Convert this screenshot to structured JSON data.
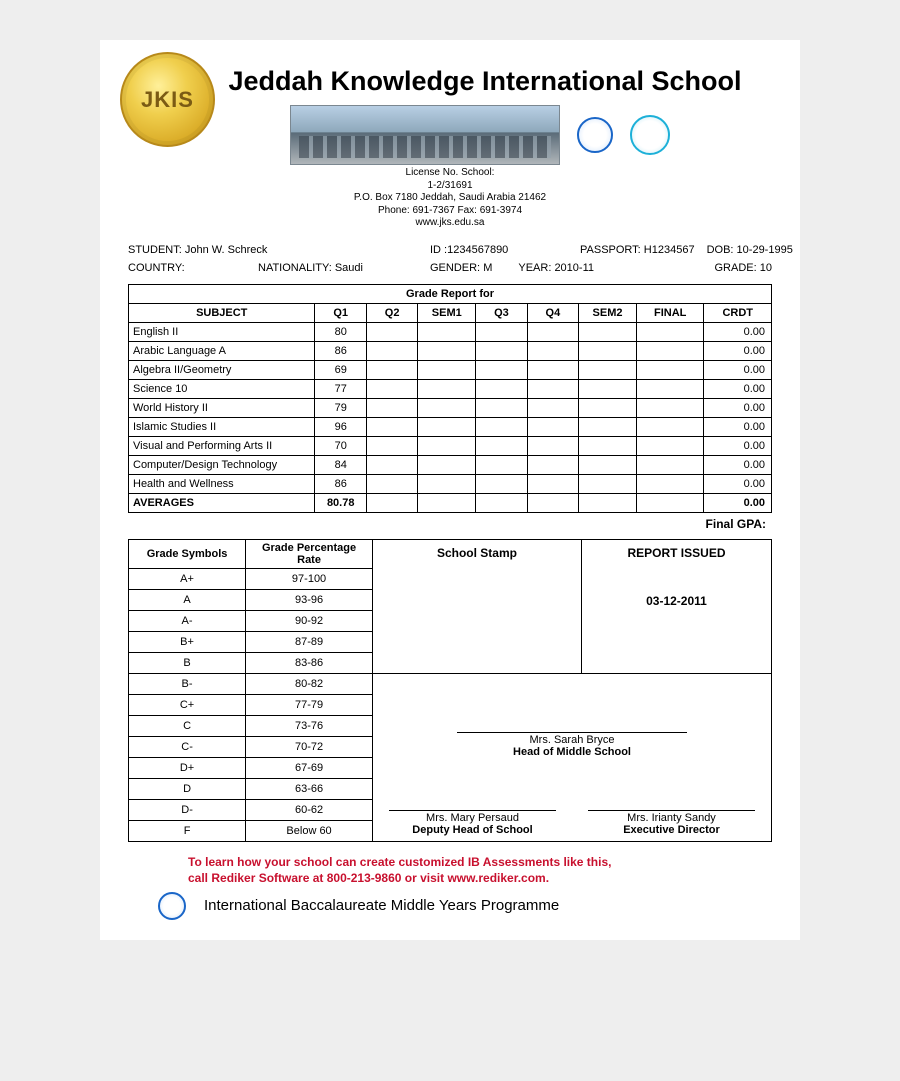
{
  "school": {
    "name": "Jeddah Knowledge International School",
    "logo_text": "JKIS",
    "license_label": "License No. School:",
    "license_no": "1-2/31691",
    "address": "P.O. Box 7180 Jeddah, Saudi Arabia 21462",
    "phone_fax": "Phone: 691-7367  Fax: 691-3974",
    "website": "www.jks.edu.sa"
  },
  "student": {
    "name_label": "STUDENT:",
    "name": "John W. Schreck",
    "id_label": "ID :",
    "id": "1234567890",
    "passport_label": "PASSPORT:",
    "passport": "H1234567",
    "dob_label": "DOB:",
    "dob": "10-29-1995",
    "country_label": "COUNTRY:",
    "country": "",
    "nationality_label": "NATIONALITY:",
    "nationality": "Saudi",
    "gender_label": "GENDER:",
    "gender": "M",
    "year_label": "YEAR:",
    "year": "2010-11",
    "grade_label": "GRADE:",
    "grade": "10"
  },
  "report": {
    "title": "Grade Report for",
    "columns": [
      "SUBJECT",
      "Q1",
      "Q2",
      "SEM1",
      "Q3",
      "Q4",
      "SEM2",
      "FINAL",
      "CRDT"
    ],
    "col_widths_pct": [
      29,
      8,
      8,
      9,
      8,
      8,
      9,
      10.5,
      10.5
    ],
    "rows": [
      {
        "subject": "English II",
        "q1": "80",
        "q2": "",
        "sem1": "",
        "q3": "",
        "q4": "",
        "sem2": "",
        "final": "",
        "crdt": "0.00"
      },
      {
        "subject": "Arabic Language A",
        "q1": "86",
        "q2": "",
        "sem1": "",
        "q3": "",
        "q4": "",
        "sem2": "",
        "final": "",
        "crdt": "0.00"
      },
      {
        "subject": "Algebra II/Geometry",
        "q1": "69",
        "q2": "",
        "sem1": "",
        "q3": "",
        "q4": "",
        "sem2": "",
        "final": "",
        "crdt": "0.00"
      },
      {
        "subject": "Science 10",
        "q1": "77",
        "q2": "",
        "sem1": "",
        "q3": "",
        "q4": "",
        "sem2": "",
        "final": "",
        "crdt": "0.00"
      },
      {
        "subject": "World History II",
        "q1": "79",
        "q2": "",
        "sem1": "",
        "q3": "",
        "q4": "",
        "sem2": "",
        "final": "",
        "crdt": "0.00"
      },
      {
        "subject": "Islamic Studies II",
        "q1": "96",
        "q2": "",
        "sem1": "",
        "q3": "",
        "q4": "",
        "sem2": "",
        "final": "",
        "crdt": "0.00"
      },
      {
        "subject": "Visual and Performing Arts II",
        "q1": "70",
        "q2": "",
        "sem1": "",
        "q3": "",
        "q4": "",
        "sem2": "",
        "final": "",
        "crdt": "0.00"
      },
      {
        "subject": "Computer/Design Technology",
        "q1": "84",
        "q2": "",
        "sem1": "",
        "q3": "",
        "q4": "",
        "sem2": "",
        "final": "",
        "crdt": "0.00"
      },
      {
        "subject": "Health and Wellness",
        "q1": "86",
        "q2": "",
        "sem1": "",
        "q3": "",
        "q4": "",
        "sem2": "",
        "final": "",
        "crdt": "0.00"
      }
    ],
    "averages_label": "AVERAGES",
    "averages": {
      "q1": "80.78",
      "q2": "",
      "sem1": "",
      "q3": "",
      "q4": "",
      "sem2": "",
      "final": "",
      "crdt": "0.00"
    },
    "final_gpa_label": "Final GPA:"
  },
  "scale": {
    "headers": [
      "Grade Symbols",
      "Grade Percentage Rate"
    ],
    "rows": [
      [
        "A+",
        "97-100"
      ],
      [
        "A",
        "93-96"
      ],
      [
        "A-",
        "90-92"
      ],
      [
        "B+",
        "87-89"
      ],
      [
        "B",
        "83-86"
      ],
      [
        "B-",
        "80-82"
      ],
      [
        "C+",
        "77-79"
      ],
      [
        "C",
        "73-76"
      ],
      [
        "C-",
        "70-72"
      ],
      [
        "D+",
        "67-69"
      ],
      [
        "D",
        "63-66"
      ],
      [
        "D-",
        "60-62"
      ],
      [
        "F",
        "Below 60"
      ]
    ]
  },
  "stamp": {
    "label": "School Stamp"
  },
  "issued": {
    "label": "REPORT ISSUED",
    "date": "03-12-2011"
  },
  "signatures": {
    "head": {
      "name": "Mrs. Sarah Bryce",
      "title": "Head of Middle School"
    },
    "deputy": {
      "name": "Mrs. Mary Persaud",
      "title": "Deputy Head of School"
    },
    "director": {
      "name": "Mrs. Irianty Sandy",
      "title": "Executive Director"
    }
  },
  "promo": {
    "line1": "To learn how your school can create customized IB Assessments like this,",
    "line2": "call Rediker Software at 800-213-9860 or visit www.rediker.com."
  },
  "footer": {
    "programme": "International Baccalaureate Middle Years Programme"
  },
  "colors": {
    "page_bg": "#eeeeee",
    "paper_bg": "#ffffff",
    "text": "#000000",
    "promo": "#c8102e",
    "logo_gold_light": "#fff09a",
    "logo_gold_mid": "#f0cf4d",
    "logo_gold_dark": "#d6a520",
    "ib_blue": "#1a66c8",
    "cis_blue": "#1db0d8"
  }
}
